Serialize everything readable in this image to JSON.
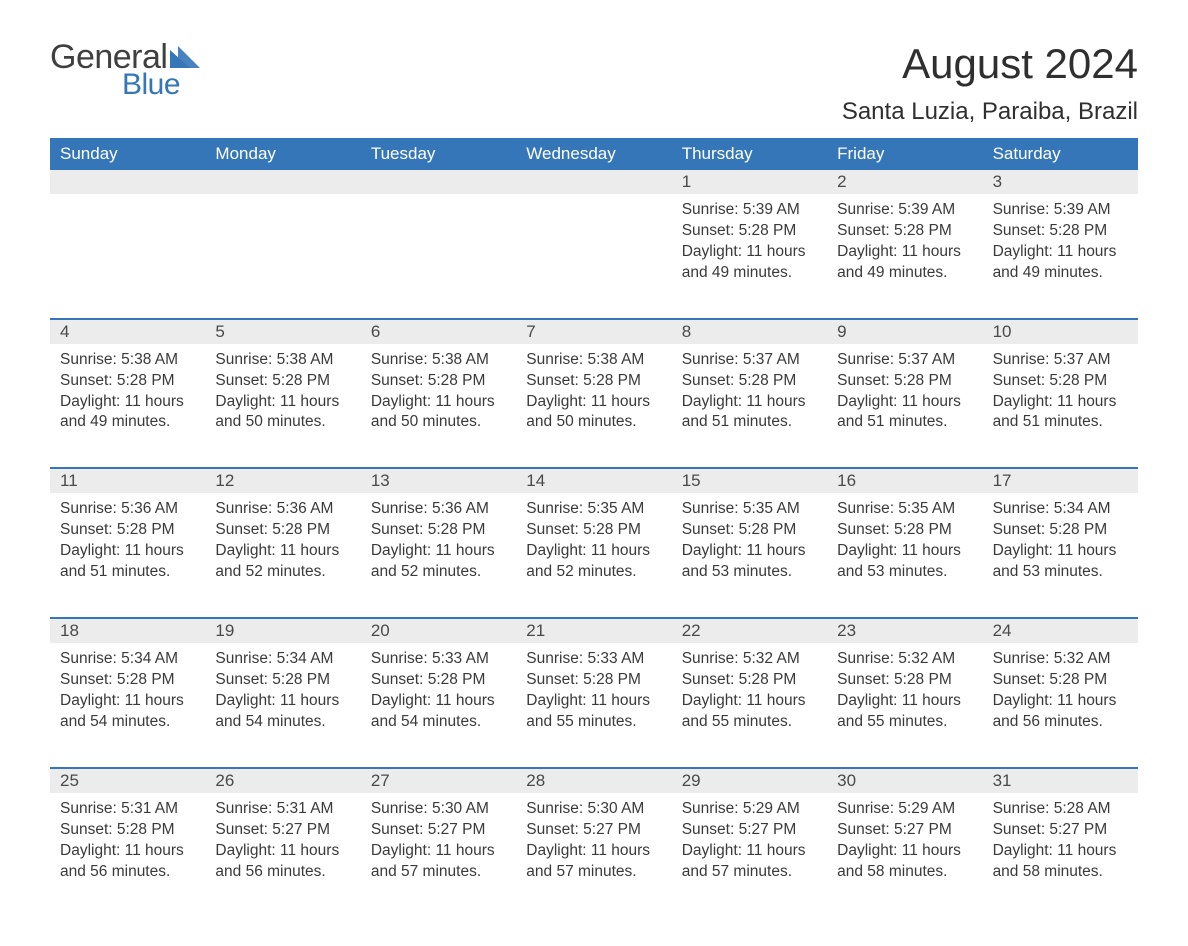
{
  "brand": {
    "general": "General",
    "blue": "Blue",
    "tri_color": "#3576b8"
  },
  "header": {
    "month_title": "August 2024",
    "location": "Santa Luzia, Paraiba, Brazil"
  },
  "colors": {
    "header_bg": "#3576b8",
    "header_text": "#ffffff",
    "daynum_bg": "#ececec",
    "rule": "#3576b8",
    "body_text": "#3a3a3a",
    "page_bg": "#ffffff"
  },
  "day_names": [
    "Sunday",
    "Monday",
    "Tuesday",
    "Wednesday",
    "Thursday",
    "Friday",
    "Saturday"
  ],
  "weeks": [
    [
      null,
      null,
      null,
      null,
      {
        "n": "1",
        "sr": "5:39 AM",
        "ss": "5:28 PM",
        "dl": "11 hours and 49 minutes."
      },
      {
        "n": "2",
        "sr": "5:39 AM",
        "ss": "5:28 PM",
        "dl": "11 hours and 49 minutes."
      },
      {
        "n": "3",
        "sr": "5:39 AM",
        "ss": "5:28 PM",
        "dl": "11 hours and 49 minutes."
      }
    ],
    [
      {
        "n": "4",
        "sr": "5:38 AM",
        "ss": "5:28 PM",
        "dl": "11 hours and 49 minutes."
      },
      {
        "n": "5",
        "sr": "5:38 AM",
        "ss": "5:28 PM",
        "dl": "11 hours and 50 minutes."
      },
      {
        "n": "6",
        "sr": "5:38 AM",
        "ss": "5:28 PM",
        "dl": "11 hours and 50 minutes."
      },
      {
        "n": "7",
        "sr": "5:38 AM",
        "ss": "5:28 PM",
        "dl": "11 hours and 50 minutes."
      },
      {
        "n": "8",
        "sr": "5:37 AM",
        "ss": "5:28 PM",
        "dl": "11 hours and 51 minutes."
      },
      {
        "n": "9",
        "sr": "5:37 AM",
        "ss": "5:28 PM",
        "dl": "11 hours and 51 minutes."
      },
      {
        "n": "10",
        "sr": "5:37 AM",
        "ss": "5:28 PM",
        "dl": "11 hours and 51 minutes."
      }
    ],
    [
      {
        "n": "11",
        "sr": "5:36 AM",
        "ss": "5:28 PM",
        "dl": "11 hours and 51 minutes."
      },
      {
        "n": "12",
        "sr": "5:36 AM",
        "ss": "5:28 PM",
        "dl": "11 hours and 52 minutes."
      },
      {
        "n": "13",
        "sr": "5:36 AM",
        "ss": "5:28 PM",
        "dl": "11 hours and 52 minutes."
      },
      {
        "n": "14",
        "sr": "5:35 AM",
        "ss": "5:28 PM",
        "dl": "11 hours and 52 minutes."
      },
      {
        "n": "15",
        "sr": "5:35 AM",
        "ss": "5:28 PM",
        "dl": "11 hours and 53 minutes."
      },
      {
        "n": "16",
        "sr": "5:35 AM",
        "ss": "5:28 PM",
        "dl": "11 hours and 53 minutes."
      },
      {
        "n": "17",
        "sr": "5:34 AM",
        "ss": "5:28 PM",
        "dl": "11 hours and 53 minutes."
      }
    ],
    [
      {
        "n": "18",
        "sr": "5:34 AM",
        "ss": "5:28 PM",
        "dl": "11 hours and 54 minutes."
      },
      {
        "n": "19",
        "sr": "5:34 AM",
        "ss": "5:28 PM",
        "dl": "11 hours and 54 minutes."
      },
      {
        "n": "20",
        "sr": "5:33 AM",
        "ss": "5:28 PM",
        "dl": "11 hours and 54 minutes."
      },
      {
        "n": "21",
        "sr": "5:33 AM",
        "ss": "5:28 PM",
        "dl": "11 hours and 55 minutes."
      },
      {
        "n": "22",
        "sr": "5:32 AM",
        "ss": "5:28 PM",
        "dl": "11 hours and 55 minutes."
      },
      {
        "n": "23",
        "sr": "5:32 AM",
        "ss": "5:28 PM",
        "dl": "11 hours and 55 minutes."
      },
      {
        "n": "24",
        "sr": "5:32 AM",
        "ss": "5:28 PM",
        "dl": "11 hours and 56 minutes."
      }
    ],
    [
      {
        "n": "25",
        "sr": "5:31 AM",
        "ss": "5:28 PM",
        "dl": "11 hours and 56 minutes."
      },
      {
        "n": "26",
        "sr": "5:31 AM",
        "ss": "5:27 PM",
        "dl": "11 hours and 56 minutes."
      },
      {
        "n": "27",
        "sr": "5:30 AM",
        "ss": "5:27 PM",
        "dl": "11 hours and 57 minutes."
      },
      {
        "n": "28",
        "sr": "5:30 AM",
        "ss": "5:27 PM",
        "dl": "11 hours and 57 minutes."
      },
      {
        "n": "29",
        "sr": "5:29 AM",
        "ss": "5:27 PM",
        "dl": "11 hours and 57 minutes."
      },
      {
        "n": "30",
        "sr": "5:29 AM",
        "ss": "5:27 PM",
        "dl": "11 hours and 58 minutes."
      },
      {
        "n": "31",
        "sr": "5:28 AM",
        "ss": "5:27 PM",
        "dl": "11 hours and 58 minutes."
      }
    ]
  ],
  "labels": {
    "sunrise": "Sunrise:",
    "sunset": "Sunset:",
    "daylight": "Daylight:"
  }
}
